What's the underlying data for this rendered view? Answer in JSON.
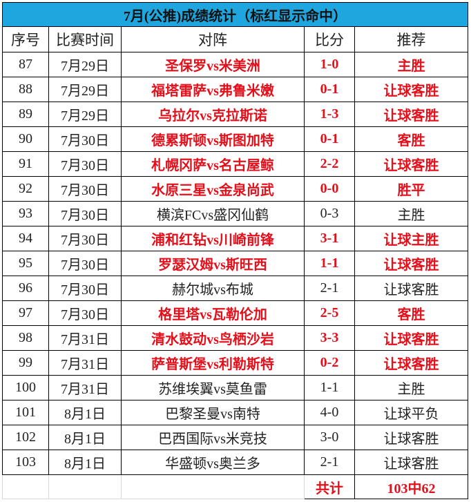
{
  "title": "7月(公推)成绩统计（标红显示命中）",
  "headers": [
    "序号",
    "比赛时间",
    "对阵",
    "比分",
    "推荐"
  ],
  "colors": {
    "title_bg": "#1fa6df",
    "hit": "#e3101b"
  },
  "rows": [
    {
      "no": "87",
      "date": "7月29日",
      "match": "圣保罗vs米美洲",
      "score": "1-0",
      "pick": "主胜",
      "hit": true
    },
    {
      "no": "88",
      "date": "7月29日",
      "match": "福塔雷萨vs弗鲁米嫩",
      "score": "0-1",
      "pick": "让球客胜",
      "hit": true
    },
    {
      "no": "89",
      "date": "7月29日",
      "match": "乌拉尔vs克拉斯诺",
      "score": "1-3",
      "pick": "让球客胜",
      "hit": true
    },
    {
      "no": "90",
      "date": "7月30日",
      "match": "德累斯顿vs斯图加特",
      "score": "0-1",
      "pick": "客胜",
      "hit": true
    },
    {
      "no": "91",
      "date": "7月30日",
      "match": "札幌冈萨vs名古屋鲸",
      "score": "2-2",
      "pick": "让球客胜",
      "hit": true
    },
    {
      "no": "92",
      "date": "7月30日",
      "match": "水原三星vs金泉尚武",
      "score": "0-0",
      "pick": "胜平",
      "hit": true
    },
    {
      "no": "93",
      "date": "7月30日",
      "match": "横滨FCvs盛冈仙鹤",
      "score": "0-3",
      "pick": "主胜",
      "hit": false
    },
    {
      "no": "94",
      "date": "7月30日",
      "match": "浦和红钻vs川崎前锋",
      "score": "3-1",
      "pick": "让球主胜",
      "hit": true
    },
    {
      "no": "95",
      "date": "7月30日",
      "match": "罗瑟汉姆vs斯旺西",
      "score": "1-1",
      "pick": "让球客胜",
      "hit": true
    },
    {
      "no": "96",
      "date": "7月30日",
      "match": "赫尔城vs布城",
      "score": "2-1",
      "pick": "让球客胜",
      "hit": false
    },
    {
      "no": "97",
      "date": "7月30日",
      "match": "格里塔vs瓦勒伦加",
      "score": "2-5",
      "pick": "客胜",
      "hit": true
    },
    {
      "no": "98",
      "date": "7月31日",
      "match": "清水鼓动vs鸟栖沙岩",
      "score": "3-3",
      "pick": "让球客胜",
      "hit": true
    },
    {
      "no": "99",
      "date": "7月31日",
      "match": "萨普斯堡vs利勒斯特",
      "score": "0-2",
      "pick": "让球客胜",
      "hit": true
    },
    {
      "no": "100",
      "date": "7月31日",
      "match": "苏维埃翼vs莫鱼雷",
      "score": "1-1",
      "pick": "主胜",
      "hit": false
    },
    {
      "no": "101",
      "date": "8月1日",
      "match": "巴黎圣曼vs南特",
      "score": "4-0",
      "pick": "让球平负",
      "hit": false
    },
    {
      "no": "102",
      "date": "8月1日",
      "match": "巴西国际vs米竞技",
      "score": "3-0",
      "pick": "让球客胜",
      "hit": false
    },
    {
      "no": "103",
      "date": "8月1日",
      "match": "华盛顿vs奥兰多",
      "score": "2-1",
      "pick": "让球客胜",
      "hit": false
    }
  ],
  "total": {
    "label": "共计",
    "value": "103中62"
  }
}
